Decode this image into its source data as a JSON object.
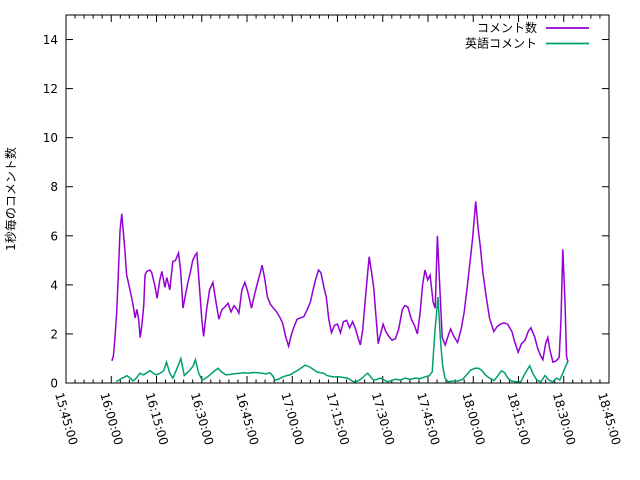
{
  "chart_data": {
    "type": "line",
    "title": "",
    "xlabel": "",
    "ylabel": "1秒毎のコメント数",
    "ylim": [
      0,
      15
    ],
    "y_ticks": [
      0,
      2,
      4,
      6,
      8,
      10,
      12,
      14
    ],
    "x_range_minutes": [
      0,
      180
    ],
    "x_tick_interval_minutes": 15,
    "x_minor_tick_interval_minutes": 3,
    "x_tick_labels": [
      "15:45:00",
      "16:00:00",
      "16:15:00",
      "16:30:00",
      "16:45:00",
      "17:00:00",
      "17:15:00",
      "17:30:00",
      "17:45:00",
      "18:00:00",
      "18:15:00",
      "18:30:00",
      "18:45:00"
    ],
    "grid": false,
    "legend_position": "top-right",
    "series": [
      {
        "name": "コメント数",
        "color": "#9400d3",
        "points": [
          [
            15.2,
            0.9
          ],
          [
            15.7,
            1.1
          ],
          [
            16.2,
            1.8
          ],
          [
            16.8,
            2.9
          ],
          [
            17.3,
            4.3
          ],
          [
            17.9,
            6.2
          ],
          [
            18.5,
            6.9
          ],
          [
            19.6,
            5.3
          ],
          [
            20.1,
            4.4
          ],
          [
            20.5,
            4.2
          ],
          [
            21.8,
            3.45
          ],
          [
            22.2,
            3.2
          ],
          [
            22.9,
            2.65
          ],
          [
            23.5,
            3.0
          ],
          [
            24.1,
            2.57
          ],
          [
            24.6,
            1.85
          ],
          [
            25.2,
            2.4
          ],
          [
            25.8,
            3.2
          ],
          [
            26.2,
            4.4
          ],
          [
            26.8,
            4.55
          ],
          [
            27.8,
            4.6
          ],
          [
            28.4,
            4.5
          ],
          [
            29.4,
            4.0
          ],
          [
            30.2,
            3.45
          ],
          [
            31.1,
            4.2
          ],
          [
            31.8,
            4.55
          ],
          [
            32.8,
            3.9
          ],
          [
            33.4,
            4.3
          ],
          [
            34.4,
            3.8
          ],
          [
            35.4,
            4.95
          ],
          [
            36.3,
            5.0
          ],
          [
            37.3,
            5.3
          ],
          [
            38.0,
            4.6
          ],
          [
            38.8,
            3.05
          ],
          [
            39.6,
            3.6
          ],
          [
            40.4,
            4.1
          ],
          [
            41.2,
            4.5
          ],
          [
            42.0,
            5.0
          ],
          [
            42.8,
            5.2
          ],
          [
            43.4,
            5.3
          ],
          [
            44.2,
            4.0
          ],
          [
            45.0,
            2.6
          ],
          [
            45.6,
            1.9
          ],
          [
            46.6,
            3.0
          ],
          [
            47.6,
            3.8
          ],
          [
            48.7,
            4.1
          ],
          [
            49.6,
            3.4
          ],
          [
            50.7,
            2.6
          ],
          [
            51.7,
            3.0
          ],
          [
            52.7,
            3.1
          ],
          [
            53.7,
            3.25
          ],
          [
            54.7,
            2.9
          ],
          [
            55.7,
            3.15
          ],
          [
            56.7,
            3.0
          ],
          [
            57.3,
            2.85
          ],
          [
            58.3,
            3.8
          ],
          [
            59.3,
            4.1
          ],
          [
            60.3,
            3.7
          ],
          [
            61.5,
            3.05
          ],
          [
            62.5,
            3.6
          ],
          [
            63.5,
            4.1
          ],
          [
            64.4,
            4.5
          ],
          [
            65.0,
            4.8
          ],
          [
            65.8,
            4.3
          ],
          [
            66.8,
            3.5
          ],
          [
            67.8,
            3.2
          ],
          [
            68.8,
            3.05
          ],
          [
            69.8,
            2.9
          ],
          [
            70.8,
            2.7
          ],
          [
            71.8,
            2.45
          ],
          [
            72.8,
            1.9
          ],
          [
            73.8,
            1.5
          ],
          [
            74.8,
            2.0
          ],
          [
            75.6,
            2.3
          ],
          [
            76.6,
            2.6
          ],
          [
            77.6,
            2.65
          ],
          [
            78.8,
            2.7
          ],
          [
            80.0,
            3.0
          ],
          [
            81.0,
            3.3
          ],
          [
            81.9,
            3.8
          ],
          [
            82.7,
            4.2
          ],
          [
            83.7,
            4.6
          ],
          [
            84.5,
            4.5
          ],
          [
            85.5,
            3.9
          ],
          [
            86.3,
            3.5
          ],
          [
            87.1,
            2.6
          ],
          [
            88.0,
            2.05
          ],
          [
            89.0,
            2.35
          ],
          [
            90.0,
            2.4
          ],
          [
            91.0,
            2.05
          ],
          [
            92.0,
            2.5
          ],
          [
            93.0,
            2.55
          ],
          [
            94.0,
            2.25
          ],
          [
            95.0,
            2.5
          ],
          [
            96.0,
            2.2
          ],
          [
            96.8,
            1.85
          ],
          [
            97.6,
            1.55
          ],
          [
            98.4,
            2.2
          ],
          [
            99.2,
            3.4
          ],
          [
            100.0,
            4.5
          ],
          [
            100.5,
            5.15
          ],
          [
            101.3,
            4.5
          ],
          [
            102.0,
            3.9
          ],
          [
            102.7,
            2.8
          ],
          [
            103.5,
            1.6
          ],
          [
            104.3,
            2.0
          ],
          [
            105.1,
            2.4
          ],
          [
            106.0,
            2.1
          ],
          [
            107.0,
            1.9
          ],
          [
            108.1,
            1.75
          ],
          [
            109.2,
            1.8
          ],
          [
            110.3,
            2.2
          ],
          [
            111.5,
            3.0
          ],
          [
            112.3,
            3.15
          ],
          [
            113.3,
            3.1
          ],
          [
            114.5,
            2.6
          ],
          [
            115.5,
            2.35
          ],
          [
            116.5,
            2.0
          ],
          [
            117.4,
            2.9
          ],
          [
            118.2,
            4.0
          ],
          [
            119.0,
            4.6
          ],
          [
            119.9,
            4.2
          ],
          [
            120.7,
            4.4
          ],
          [
            121.7,
            3.3
          ],
          [
            122.4,
            3.05
          ],
          [
            123.1,
            6.0
          ],
          [
            123.9,
            3.9
          ],
          [
            124.7,
            1.85
          ],
          [
            125.7,
            1.55
          ],
          [
            126.9,
            2.0
          ],
          [
            127.5,
            2.2
          ],
          [
            128.6,
            1.9
          ],
          [
            129.8,
            1.65
          ],
          [
            131.0,
            2.2
          ],
          [
            132.0,
            2.9
          ],
          [
            133.0,
            3.9
          ],
          [
            134.0,
            5.0
          ],
          [
            134.8,
            5.9
          ],
          [
            135.8,
            7.4
          ],
          [
            136.7,
            6.2
          ],
          [
            137.3,
            5.6
          ],
          [
            138.2,
            4.5
          ],
          [
            139.2,
            3.6
          ],
          [
            140.4,
            2.65
          ],
          [
            141.8,
            2.1
          ],
          [
            142.9,
            2.3
          ],
          [
            144.0,
            2.4
          ],
          [
            145.2,
            2.45
          ],
          [
            146.4,
            2.4
          ],
          [
            147.8,
            2.1
          ],
          [
            148.8,
            1.65
          ],
          [
            149.9,
            1.25
          ],
          [
            151.0,
            1.6
          ],
          [
            152.2,
            1.75
          ],
          [
            153.2,
            2.1
          ],
          [
            154.1,
            2.25
          ],
          [
            155.3,
            1.9
          ],
          [
            156.4,
            1.4
          ],
          [
            157.4,
            1.1
          ],
          [
            158.1,
            0.95
          ],
          [
            159.0,
            1.6
          ],
          [
            159.7,
            1.85
          ],
          [
            160.4,
            1.35
          ],
          [
            161.4,
            0.85
          ],
          [
            162.5,
            0.9
          ],
          [
            163.5,
            1.05
          ],
          [
            164.1,
            2.6
          ],
          [
            164.7,
            5.45
          ],
          [
            165.4,
            3.3
          ],
          [
            165.9,
            1.1
          ],
          [
            166.4,
            0.85
          ]
        ]
      },
      {
        "name": "英語コメント",
        "color": "#009e73",
        "points": [
          [
            16.6,
            0.05
          ],
          [
            17.5,
            0.12
          ],
          [
            18.6,
            0.2
          ],
          [
            19.5,
            0.25
          ],
          [
            20.2,
            0.3
          ],
          [
            21.3,
            0.2
          ],
          [
            22.2,
            0.08
          ],
          [
            23.3,
            0.2
          ],
          [
            24.5,
            0.4
          ],
          [
            25.6,
            0.33
          ],
          [
            26.6,
            0.4
          ],
          [
            27.8,
            0.5
          ],
          [
            29.0,
            0.4
          ],
          [
            29.9,
            0.33
          ],
          [
            31.2,
            0.4
          ],
          [
            32.4,
            0.5
          ],
          [
            33.3,
            0.85
          ],
          [
            34.4,
            0.4
          ],
          [
            35.4,
            0.2
          ],
          [
            36.5,
            0.5
          ],
          [
            38.1,
            1.0
          ],
          [
            39.2,
            0.3
          ],
          [
            40.0,
            0.4
          ],
          [
            41.1,
            0.53
          ],
          [
            42.2,
            0.7
          ],
          [
            42.9,
            0.95
          ],
          [
            44.0,
            0.4
          ],
          [
            45.1,
            0.12
          ],
          [
            46.3,
            0.2
          ],
          [
            47.5,
            0.3
          ],
          [
            48.8,
            0.45
          ],
          [
            50.4,
            0.6
          ],
          [
            51.6,
            0.45
          ],
          [
            53.0,
            0.33
          ],
          [
            54.5,
            0.35
          ],
          [
            56.0,
            0.38
          ],
          [
            57.5,
            0.4
          ],
          [
            59.0,
            0.42
          ],
          [
            60.5,
            0.4
          ],
          [
            62.0,
            0.43
          ],
          [
            63.5,
            0.42
          ],
          [
            65.0,
            0.4
          ],
          [
            66.3,
            0.37
          ],
          [
            67.6,
            0.42
          ],
          [
            68.5,
            0.3
          ],
          [
            69.3,
            0.12
          ],
          [
            70.5,
            0.16
          ],
          [
            71.9,
            0.25
          ],
          [
            73.1,
            0.3
          ],
          [
            74.3,
            0.33
          ],
          [
            75.8,
            0.45
          ],
          [
            77.2,
            0.55
          ],
          [
            78.4,
            0.65
          ],
          [
            79.3,
            0.73
          ],
          [
            80.9,
            0.65
          ],
          [
            82.0,
            0.55
          ],
          [
            83.2,
            0.45
          ],
          [
            84.4,
            0.42
          ],
          [
            85.4,
            0.4
          ],
          [
            86.6,
            0.3
          ],
          [
            88.5,
            0.25
          ],
          [
            90.8,
            0.25
          ],
          [
            92.2,
            0.22
          ],
          [
            93.4,
            0.2
          ],
          [
            94.6,
            0.1
          ],
          [
            95.4,
            0.05
          ],
          [
            96.8,
            0.08
          ],
          [
            98.2,
            0.2
          ],
          [
            99.4,
            0.35
          ],
          [
            100.0,
            0.4
          ],
          [
            101.0,
            0.25
          ],
          [
            102.0,
            0.12
          ],
          [
            103.2,
            0.15
          ],
          [
            104.2,
            0.2
          ],
          [
            105.4,
            0.12
          ],
          [
            106.6,
            0.05
          ],
          [
            108.0,
            0.1
          ],
          [
            109.3,
            0.16
          ],
          [
            110.8,
            0.12
          ],
          [
            112.4,
            0.2
          ],
          [
            114.0,
            0.15
          ],
          [
            115.8,
            0.2
          ],
          [
            117.3,
            0.18
          ],
          [
            119.0,
            0.25
          ],
          [
            120.4,
            0.3
          ],
          [
            121.4,
            0.45
          ],
          [
            122.3,
            2.1
          ],
          [
            123.3,
            3.5
          ],
          [
            124.1,
            1.8
          ],
          [
            124.8,
            0.75
          ],
          [
            125.6,
            0.2
          ],
          [
            126.7,
            0.05
          ],
          [
            128.3,
            0.08
          ],
          [
            130.0,
            0.08
          ],
          [
            131.5,
            0.15
          ],
          [
            132.8,
            0.33
          ],
          [
            134.2,
            0.53
          ],
          [
            135.6,
            0.6
          ],
          [
            136.8,
            0.6
          ],
          [
            137.9,
            0.5
          ],
          [
            139.0,
            0.33
          ],
          [
            140.4,
            0.2
          ],
          [
            141.9,
            0.1
          ],
          [
            143.2,
            0.3
          ],
          [
            144.3,
            0.5
          ],
          [
            145.4,
            0.42
          ],
          [
            146.5,
            0.2
          ],
          [
            147.6,
            0.08
          ],
          [
            149.2,
            0.05
          ],
          [
            150.8,
            0.05
          ],
          [
            152.2,
            0.4
          ],
          [
            153.7,
            0.7
          ],
          [
            154.9,
            0.35
          ],
          [
            156.1,
            0.12
          ],
          [
            157.4,
            0.05
          ],
          [
            158.8,
            0.3
          ],
          [
            160.1,
            0.12
          ],
          [
            161.3,
            0.05
          ],
          [
            162.6,
            0.2
          ],
          [
            163.7,
            0.12
          ],
          [
            164.7,
            0.4
          ],
          [
            165.7,
            0.7
          ],
          [
            166.4,
            0.9
          ]
        ]
      }
    ],
    "colors": {
      "axis": "#000000",
      "background": "#ffffff"
    }
  }
}
